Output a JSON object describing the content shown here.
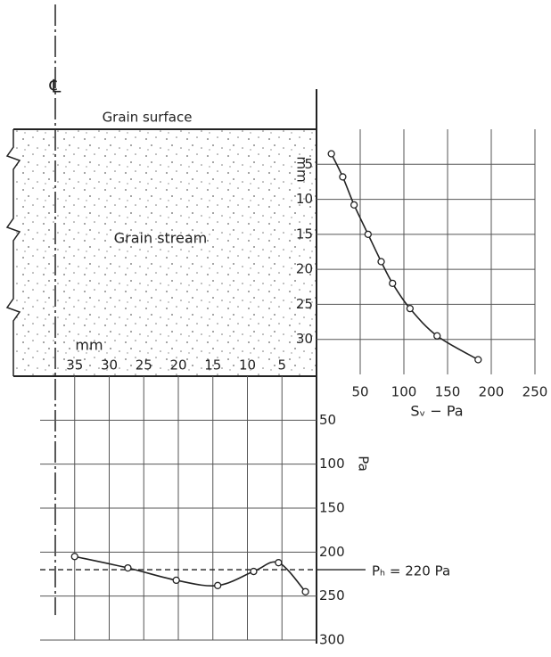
{
  "labels": {
    "centerline": "℄",
    "surface": "Grain surface",
    "stream": "Grain stream"
  },
  "chart_data": [
    {
      "type": "line",
      "x": [
        17,
        30,
        43,
        59,
        74,
        87,
        107,
        138,
        185
      ],
      "values": [
        3.5,
        6.8,
        10.8,
        15,
        18.9,
        22,
        25.6,
        29.5,
        32.9
      ],
      "xlabel": "Sᵥ − Pa",
      "ylabel": "mm",
      "xlim": [
        0,
        250
      ],
      "ylim": [
        0,
        35
      ],
      "y_inverted": true,
      "xticks": [
        50,
        100,
        150,
        200,
        250
      ],
      "yticks": [
        5,
        10,
        15,
        20,
        25,
        30
      ],
      "grid": true,
      "color": "#222"
    },
    {
      "type": "line",
      "x": [
        35,
        27.3,
        20.3,
        14.3,
        9.1,
        5.5,
        1.6
      ],
      "values": [
        205,
        218,
        232,
        238,
        222,
        212,
        245
      ],
      "xlabel": "mm",
      "ylabel": "Pa",
      "xlim": [
        40,
        0
      ],
      "ylim": [
        0,
        300
      ],
      "y_inverted": true,
      "xticks": [
        35,
        30,
        25,
        20,
        15,
        10,
        5
      ],
      "yticks": [
        50,
        100,
        150,
        200,
        250,
        300
      ],
      "grid": true,
      "color": "#222",
      "reference_line": {
        "value": 220,
        "label": "Pₕ = 220 Pa"
      }
    }
  ]
}
